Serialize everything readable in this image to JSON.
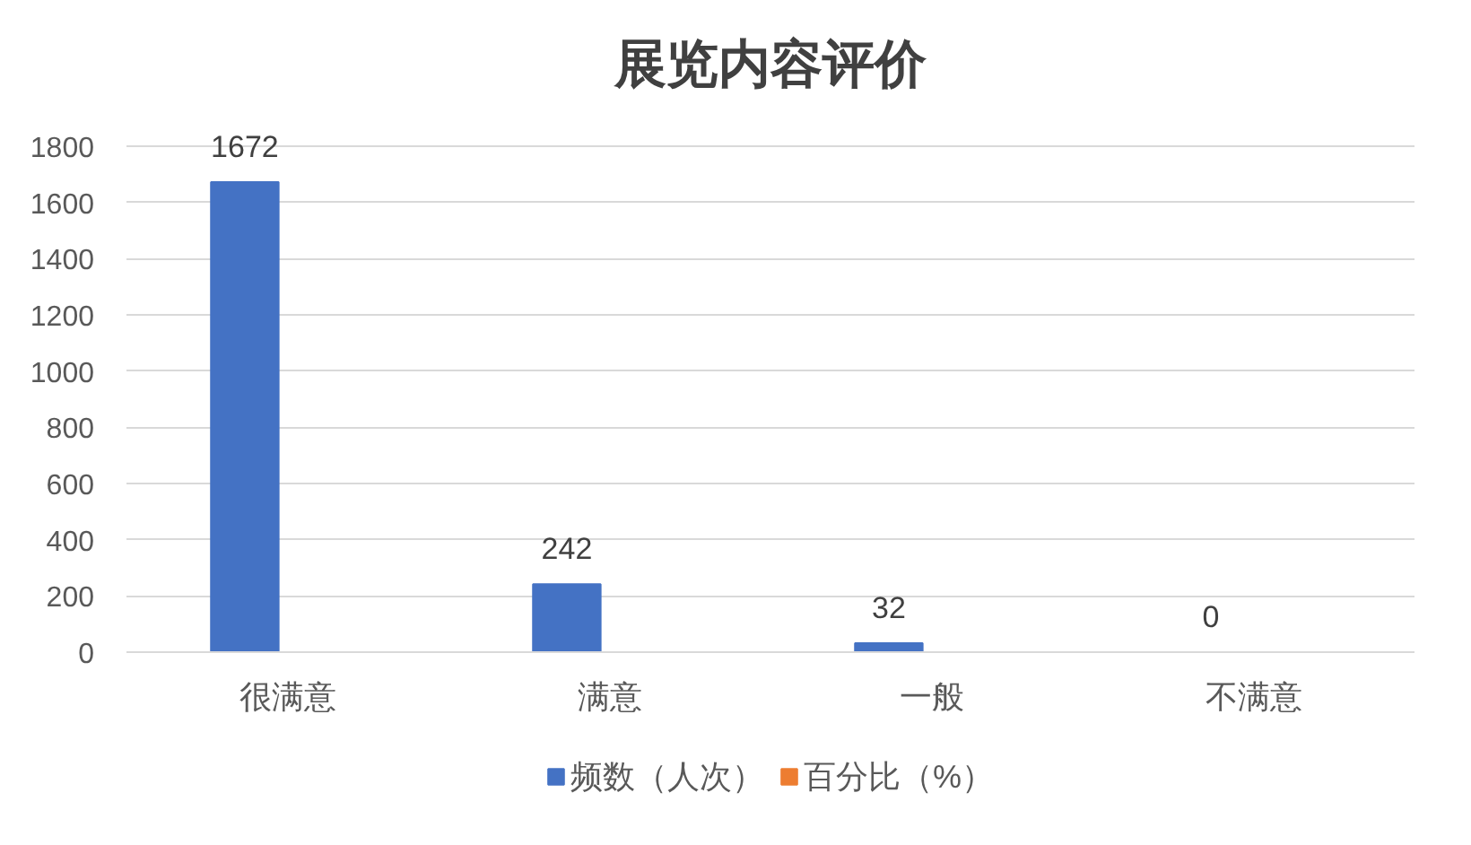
{
  "chart_data": {
    "type": "bar",
    "title": "展览内容评价",
    "categories": [
      "很满意",
      "满意",
      "一般",
      "不满意"
    ],
    "series": [
      {
        "name": "频数（人次）",
        "color": "#4472c4",
        "values": [
          1672,
          242,
          32,
          0
        ]
      },
      {
        "name": "百分比（%）",
        "color": "#ed7d31",
        "values": [
          null,
          null,
          null,
          null
        ]
      }
    ],
    "ylim": [
      0,
      1800
    ],
    "yticks": [
      0,
      200,
      400,
      600,
      800,
      1000,
      1200,
      1400,
      1600,
      1800
    ],
    "grid": "y",
    "legend": "bottom",
    "data_labels": true
  }
}
